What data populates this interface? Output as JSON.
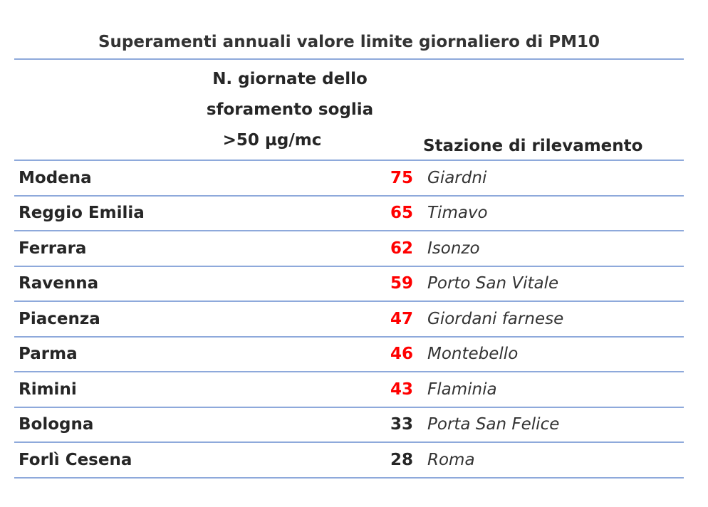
{
  "table": {
    "title": "Superamenti annuali valore limite giornaliero di PM10",
    "header": {
      "count_line1": "N. giornate dello",
      "count_line2": "sforamento soglia",
      "count_line3": ">50 µg/mc",
      "station": "Stazione di rilevamento"
    },
    "highlight_color": "#ff0000",
    "rule_color": "#8ea9db",
    "rows": [
      {
        "city": "Modena",
        "days": "75",
        "station": "Giardni",
        "highlight": true
      },
      {
        "city": "Reggio Emilia",
        "days": "65",
        "station": "Timavo",
        "highlight": true
      },
      {
        "city": "Ferrara",
        "days": "62",
        "station": "Isonzo",
        "highlight": true
      },
      {
        "city": "Ravenna",
        "days": "59",
        "station": "Porto San Vitale",
        "highlight": true
      },
      {
        "city": "Piacenza",
        "days": "47",
        "station": "Giordani farnese",
        "highlight": true
      },
      {
        "city": "Parma",
        "days": "46",
        "station": "Montebello",
        "highlight": true
      },
      {
        "city": "Rimini",
        "days": "43",
        "station": "Flaminia",
        "highlight": true
      },
      {
        "city": "Bologna",
        "days": "33",
        "station": "Porta San Felice",
        "highlight": false
      },
      {
        "city": "Forlì Cesena",
        "days": "28",
        "station": "Roma",
        "highlight": false
      }
    ]
  }
}
